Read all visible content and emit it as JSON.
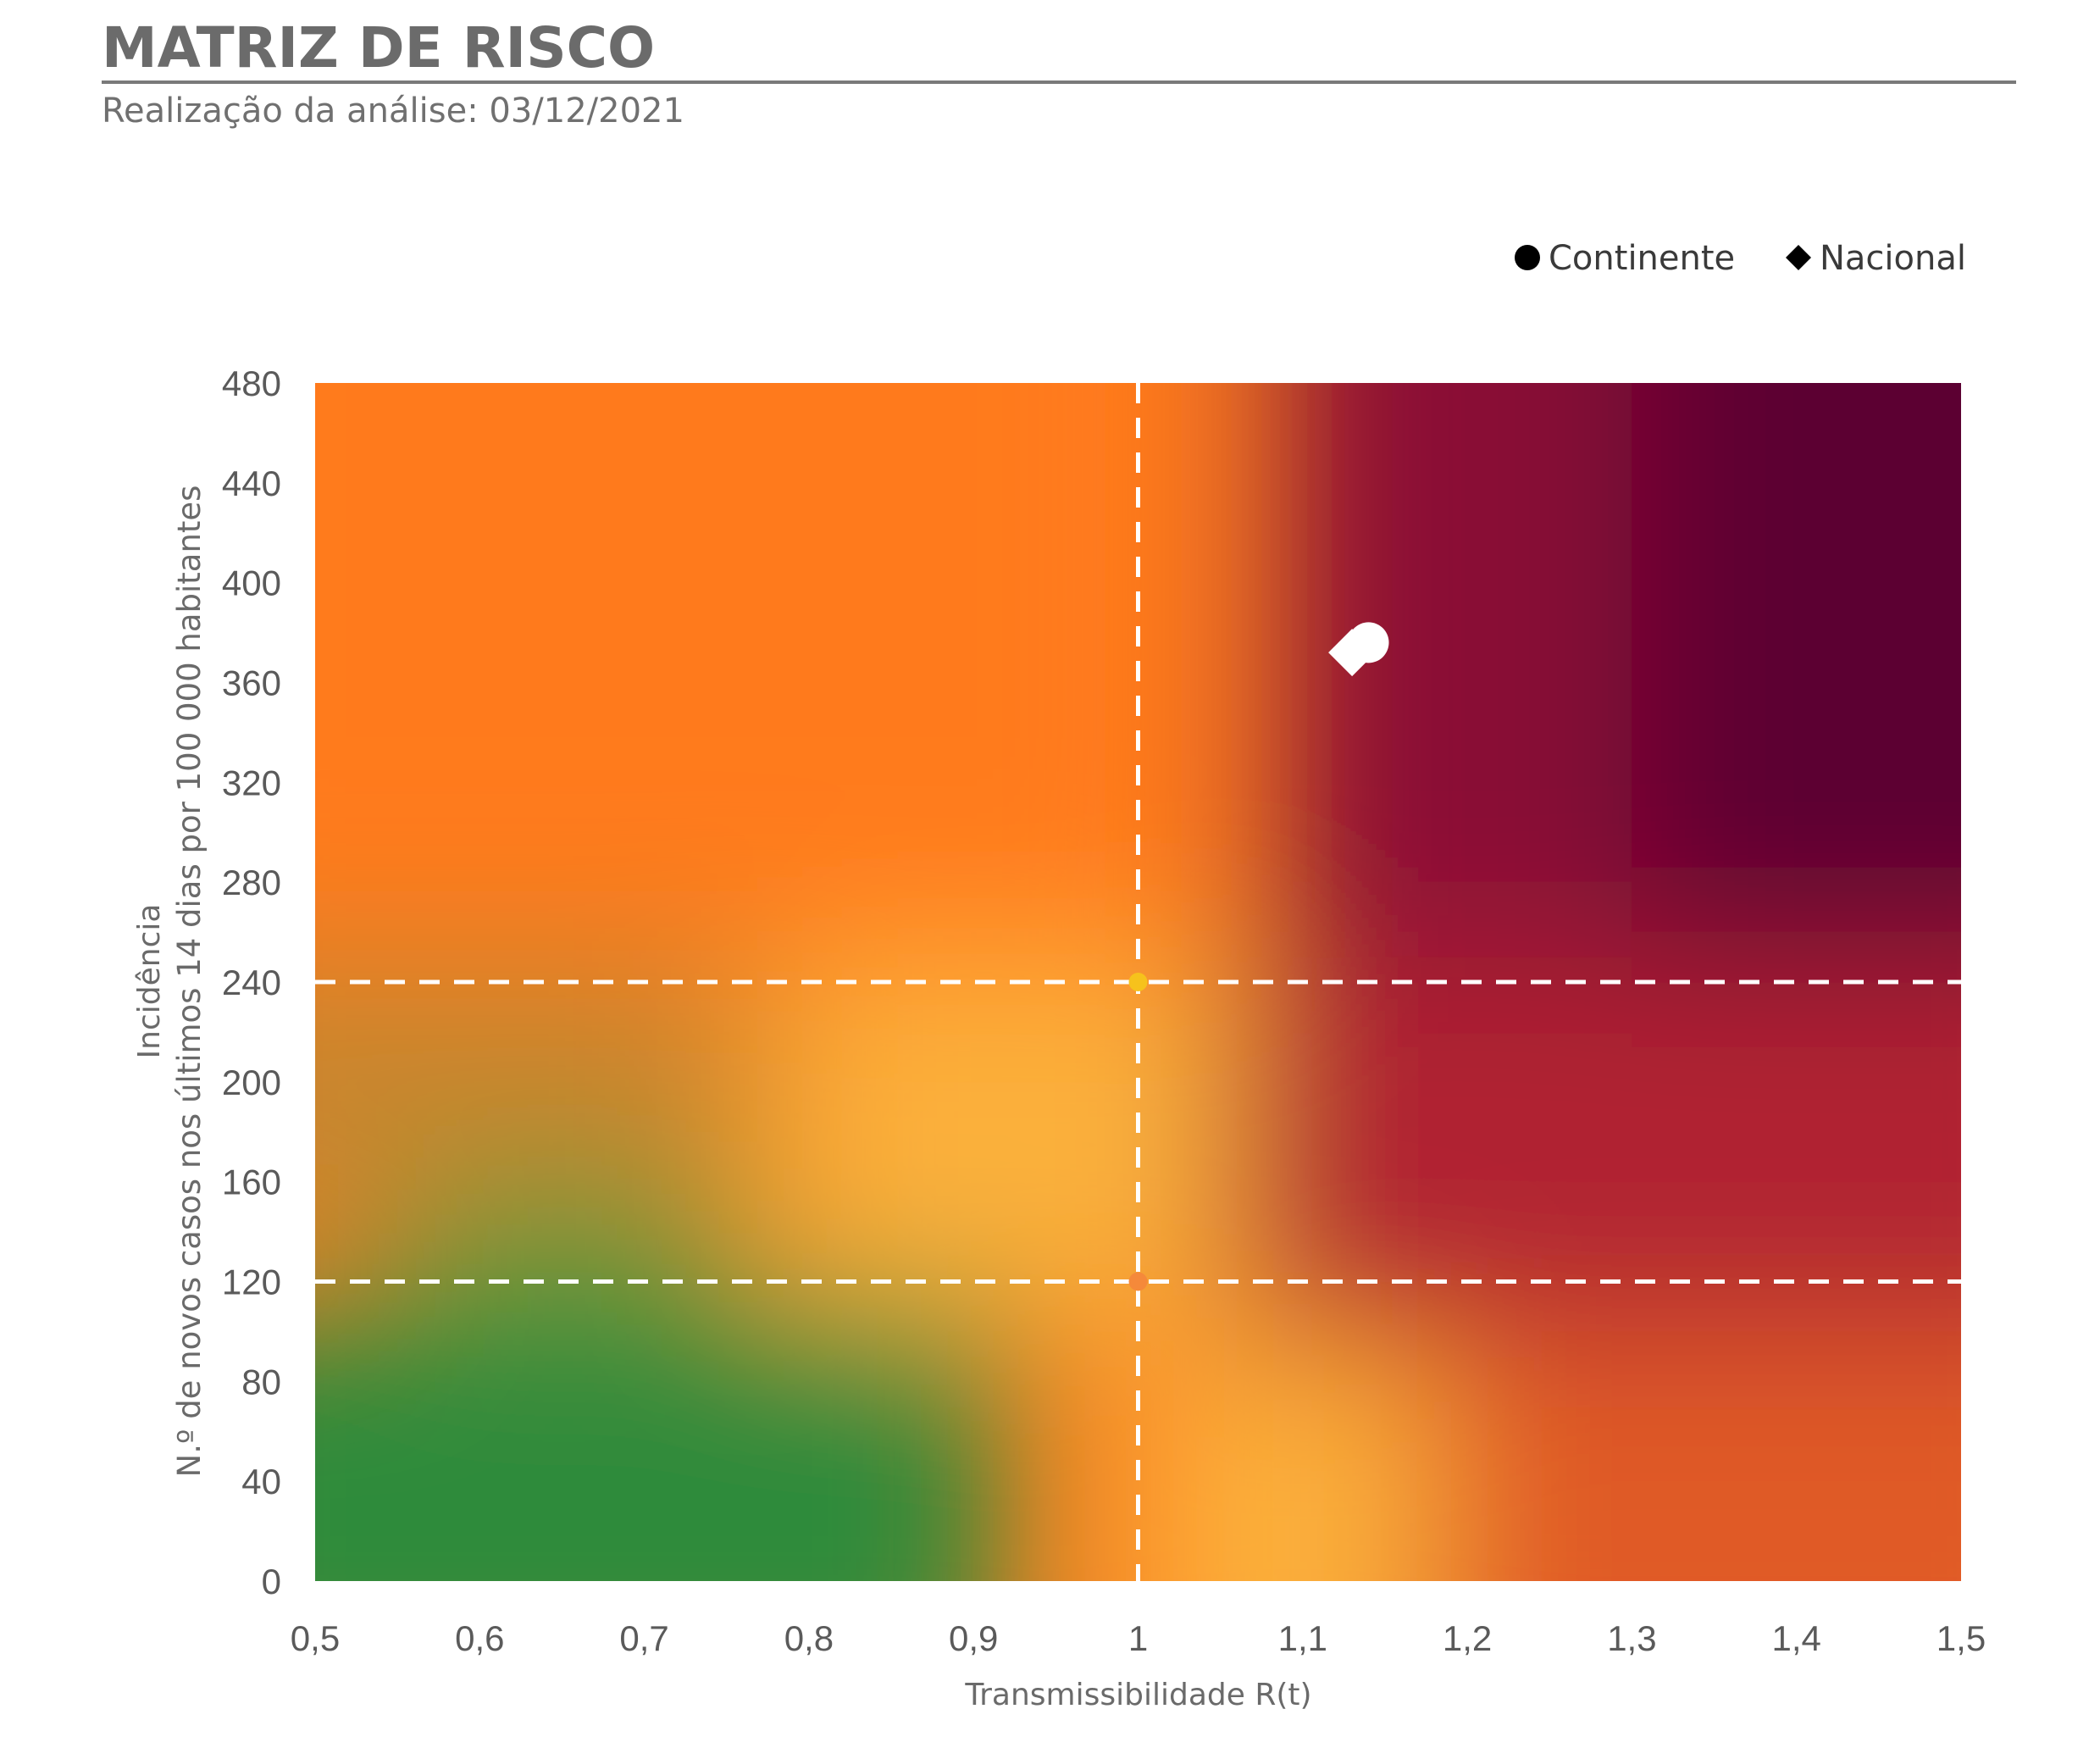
{
  "header": {
    "title": "MATRIZ DE RISCO",
    "subtitle": "Realização da análise: 03/12/2021"
  },
  "chart_data": {
    "type": "scatter",
    "title": "MATRIZ DE RISCO",
    "subtitle": "Realização da análise: 03/12/2021",
    "xlabel": "Transmissibilidade R(t)",
    "ylabel_line1": "Incidência",
    "ylabel_line2": "N.º de novos casos nos últimos 14 dias por 100 000 habitantes",
    "xlim": [
      0.5,
      1.5
    ],
    "ylim": [
      0,
      480
    ],
    "x_ticks": [
      0.5,
      0.6,
      0.7,
      0.8,
      0.9,
      1,
      1.1,
      1.2,
      1.3,
      1.4,
      1.5
    ],
    "x_tick_labels": [
      "0,5",
      "0,6",
      "0,7",
      "0,8",
      "0,9",
      "1",
      "1,1",
      "1,2",
      "1,3",
      "1,4",
      "1,5"
    ],
    "y_ticks": [
      0,
      40,
      80,
      120,
      160,
      200,
      240,
      280,
      320,
      360,
      400,
      440,
      480
    ],
    "y_tick_labels": [
      "0",
      "40",
      "80",
      "120",
      "160",
      "200",
      "240",
      "280",
      "320",
      "360",
      "400",
      "440",
      "480"
    ],
    "reference_lines": {
      "x": [
        1
      ],
      "y": [
        120,
        240
      ]
    },
    "reference_markers": [
      {
        "x": 1,
        "y": 240,
        "color": "#F6C21C"
      },
      {
        "x": 1,
        "y": 120,
        "color": "#F5893A"
      }
    ],
    "legend_position": "top-right",
    "series": [
      {
        "name": "Continente",
        "marker": "circle",
        "color": "#ffffff",
        "points": [
          {
            "x": 1.14,
            "y": 376
          }
        ]
      },
      {
        "name": "Nacional",
        "marker": "diamond",
        "color": "#ffffff",
        "points": [
          {
            "x": 1.13,
            "y": 372
          }
        ]
      }
    ],
    "background_colors": {
      "green": "#2E8B3A",
      "yellow": "#FBB03B",
      "orange": "#FF7A1A",
      "red": "#D0312D",
      "dark": "#5C0030"
    },
    "grid": false
  }
}
